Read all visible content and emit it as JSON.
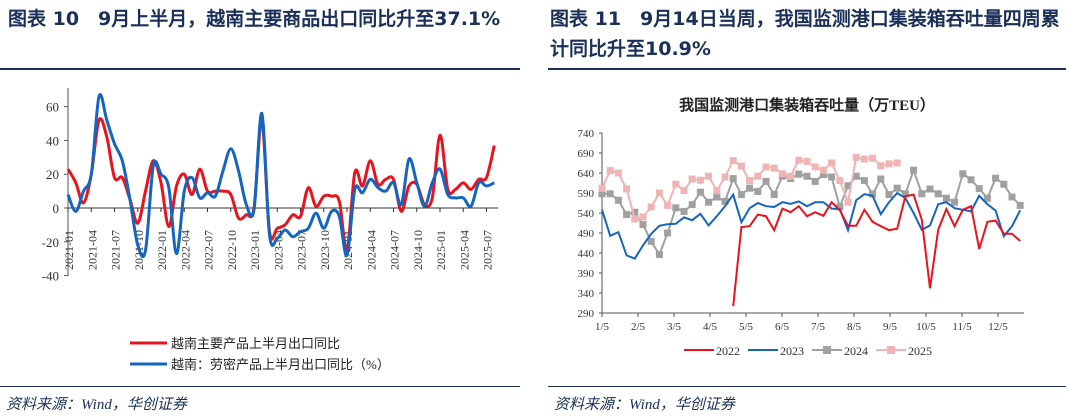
{
  "left": {
    "title": "图表 10　9月上半月，越南主要商品出口同比升至37.1%",
    "source": "资料来源：Wind，华创证券"
  },
  "right": {
    "title": "图表 11　9月14日当周，我国监测港口集装箱吞吐量四周累计同比升至10.9%",
    "source": "资料来源：Wind，华创证券"
  },
  "chart_data": [
    {
      "type": "line",
      "title": "",
      "ylim": [
        -40,
        70
      ],
      "yticks": [
        60,
        40,
        20,
        0,
        -20,
        -40
      ],
      "xtick_labels": [
        "2021-01",
        "2021-04",
        "2021-07",
        "2021-10",
        "2022-01",
        "2022-04",
        "2022-07",
        "2022-10",
        "2023-01",
        "2023-04",
        "2023-07",
        "2023-10",
        "2024-01",
        "2024-04",
        "2024-07",
        "2024-10",
        "2025-01",
        "2025-04",
        "2025-07"
      ],
      "x_start": "2021-01",
      "x_step": "month",
      "series": [
        {
          "name": "越南主要产品上半月出口同比",
          "color": "#e8141d",
          "values": [
            23,
            15,
            3,
            20,
            52,
            42,
            18,
            18,
            5,
            -9,
            10,
            28,
            15,
            -11,
            13,
            20,
            8,
            23,
            10,
            10,
            10,
            8,
            -6,
            -4,
            0,
            52,
            -14,
            -12,
            -10,
            -4,
            -5,
            12,
            1,
            7,
            7,
            4,
            -25,
            21,
            13,
            28,
            14,
            17,
            17,
            -2,
            13,
            14,
            2,
            6,
            43,
            11,
            11,
            15,
            11,
            17,
            18,
            37
          ]
        },
        {
          "name": "越南：劳密产品上半月出口同比（%）",
          "color": "#1565c0",
          "values": [
            8,
            -2,
            10,
            20,
            66,
            52,
            38,
            28,
            5,
            -22,
            -25,
            25,
            20,
            12,
            -27,
            10,
            18,
            6,
            9,
            7,
            22,
            35,
            22,
            2,
            -1,
            56,
            -16,
            -18,
            -13,
            -17,
            -14,
            -12,
            -3,
            -12,
            -2,
            -5,
            -28,
            11,
            9,
            17,
            12,
            10,
            15,
            2,
            29,
            15,
            1,
            15,
            23,
            8,
            6,
            6,
            1,
            15,
            13,
            15
          ]
        }
      ]
    },
    {
      "type": "line",
      "title": "我国监测港口集装箱吞吐量（万TEU）",
      "ylim": [
        290,
        740
      ],
      "yticks": [
        740,
        690,
        640,
        590,
        540,
        490,
        440,
        390,
        340,
        290
      ],
      "xtick_labels": [
        "1/5",
        "2/5",
        "3/5",
        "4/5",
        "5/5",
        "6/5",
        "7/5",
        "8/5",
        "9/5",
        "10/5",
        "11/5",
        "12/5"
      ],
      "series": [
        {
          "name": "2022",
          "color": "#e8141d",
          "marker": false,
          "start_week": 16,
          "values": [
            307,
            505,
            507,
            536,
            532,
            497,
            551,
            542,
            557,
            532,
            542,
            533,
            567,
            547,
            508,
            508,
            548,
            518,
            507,
            497,
            501,
            582,
            586,
            523,
            352,
            498,
            550,
            507,
            548,
            557,
            450,
            518,
            521,
            488,
            488,
            470
          ]
        },
        {
          "name": "2023",
          "color": "#1565c0",
          "marker": false,
          "start_week": 0,
          "values": [
            548,
            483,
            492,
            434,
            426,
            459,
            488,
            508,
            512,
            513,
            529,
            522,
            538,
            509,
            532,
            557,
            586,
            517,
            552,
            565,
            557,
            555,
            567,
            563,
            569,
            557,
            567,
            567,
            551,
            550,
            497,
            572,
            587,
            583,
            537,
            567,
            590,
            577,
            540,
            498,
            509,
            562,
            567,
            552,
            548,
            544,
            583,
            562,
            546,
            482,
            507,
            547
          ]
        },
        {
          "name": "2024",
          "color": "#a0a0a0",
          "marker": true,
          "start_week": 0,
          "values": [
            588,
            588,
            572,
            536,
            542,
            511,
            469,
            436,
            490,
            553,
            544,
            561,
            592,
            567,
            580,
            569,
            626,
            586,
            602,
            594,
            619,
            586,
            632,
            626,
            637,
            632,
            619,
            636,
            630,
            555,
            608,
            632,
            621,
            587,
            625,
            586,
            602,
            588,
            647,
            588,
            600,
            588,
            577,
            567,
            638,
            623,
            601,
            577,
            627,
            612,
            580,
            559
          ]
        },
        {
          "name": "2025",
          "color": "#f0b4b4",
          "marker": true,
          "start_week": 0,
          "values": [
            602,
            646,
            640,
            600,
            525,
            530,
            555,
            590,
            559,
            612,
            596,
            625,
            622,
            632,
            596,
            630,
            671,
            657,
            621,
            632,
            655,
            652,
            638,
            632,
            672,
            669,
            655,
            647,
            665,
            621,
            567,
            679,
            675,
            677,
            658,
            663,
            665
          ]
        }
      ]
    }
  ]
}
